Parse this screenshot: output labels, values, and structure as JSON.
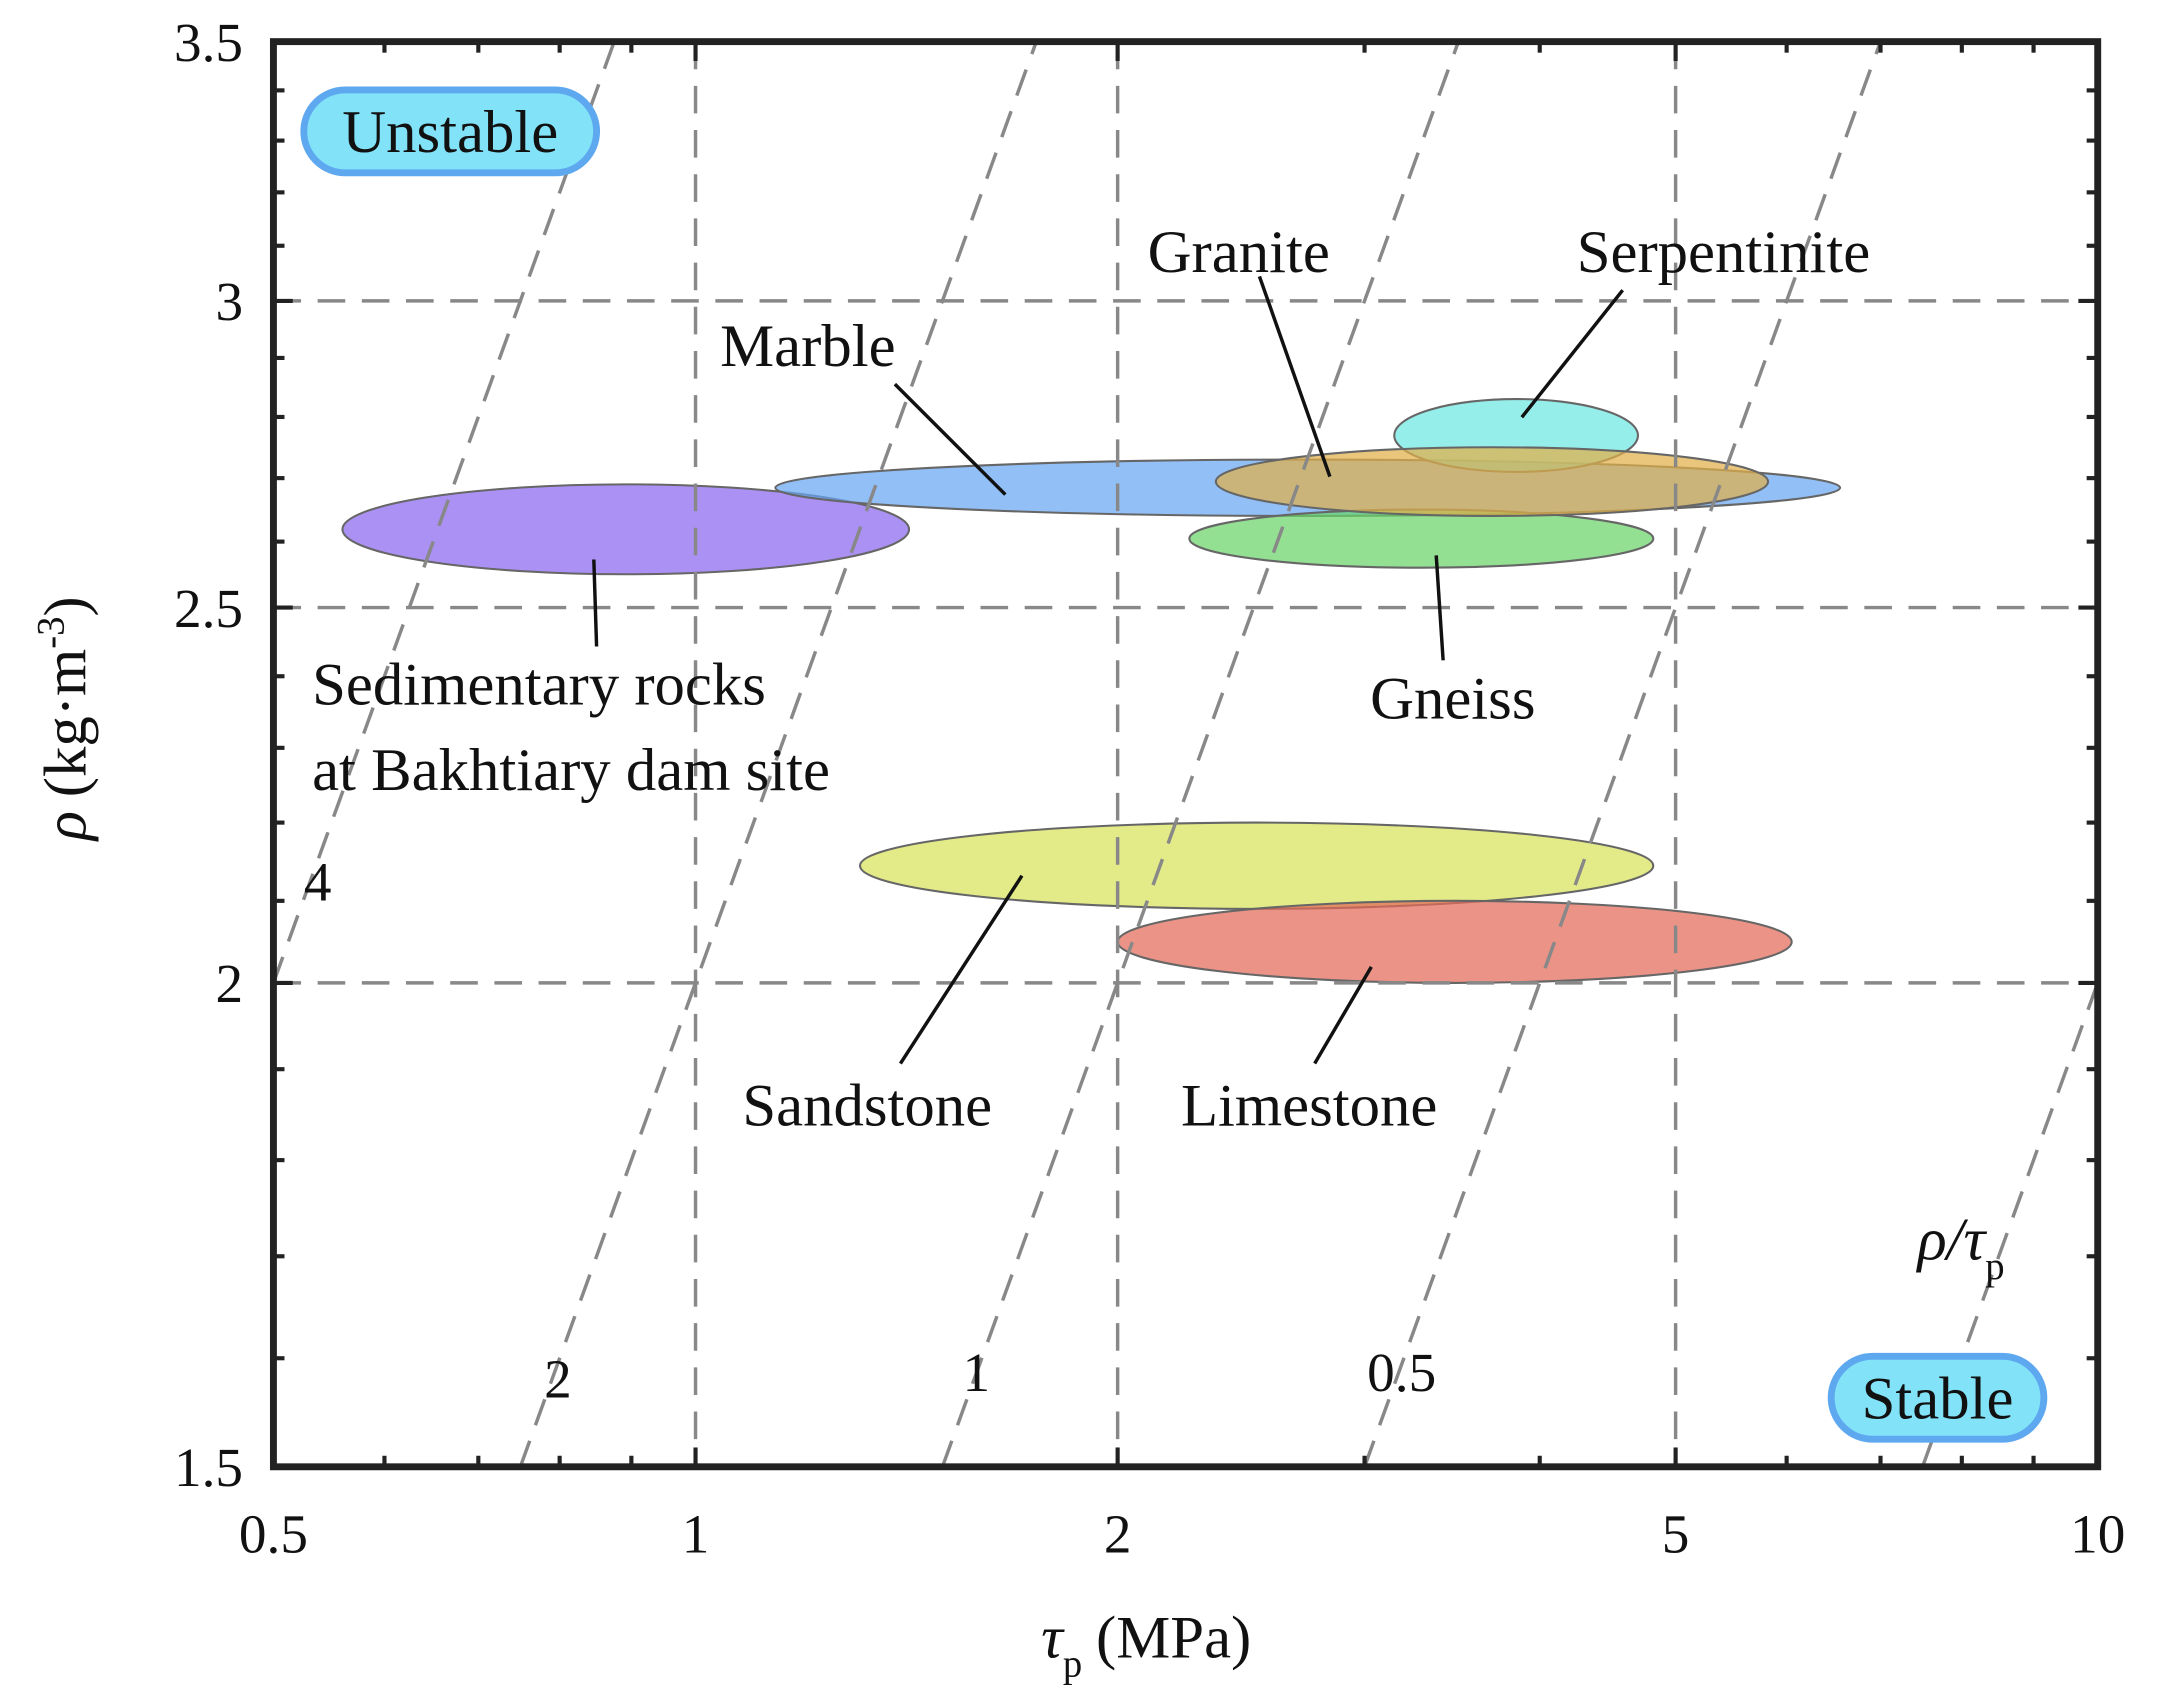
{
  "chart_data": {
    "type": "ellipse",
    "xlabel": {
      "symbol": "τ",
      "sub": "p",
      "text": "(MPa)"
    },
    "ylabel": {
      "symbol": "ρ",
      "text": "(kg·m",
      "sup": "-3",
      "end": ")"
    },
    "xscale": "log",
    "yscale": "log",
    "xlim": [
      0.5,
      10
    ],
    "ylim": [
      1.5,
      3.5
    ],
    "xticks": [
      0.5,
      1,
      2,
      5,
      10
    ],
    "yticks": [
      1.5,
      2,
      2.5,
      3,
      3.5
    ],
    "xminorticks": [
      0.6,
      0.7,
      0.8,
      0.9,
      3,
      4,
      6,
      7,
      8,
      9
    ],
    "yminorticks": [
      1.6,
      1.7,
      1.8,
      1.9,
      2.1,
      2.2,
      2.3,
      2.4,
      2.6,
      2.7,
      2.8,
      2.9,
      3.1,
      3.2,
      3.3,
      3.4
    ],
    "grid": true,
    "ratio_lines": [
      4,
      2,
      1,
      0.5,
      0.2
    ],
    "ratio_label": {
      "symbol": "ρ/τ",
      "sub": "p"
    },
    "zones": [
      "Unstable",
      "Stable"
    ],
    "regions": [
      {
        "name": [
          "Sandstone"
        ],
        "color": "#d8e25a",
        "x": [
          1.31,
          4.82
        ],
        "y": [
          2.09,
          2.2
        ]
      },
      {
        "name": [
          "Limestone"
        ],
        "color": "#e26a58",
        "x": [
          2.0,
          6.05
        ],
        "y": [
          2.0,
          2.1
        ]
      },
      {
        "name": [
          "Sedimentary rocks",
          "at Bakhtiary dam site"
        ],
        "color": "#8a66f0",
        "x": [
          0.56,
          1.42
        ],
        "y": [
          2.55,
          2.69
        ]
      },
      {
        "name": [
          "Marble"
        ],
        "color": "#66a6f2",
        "x": [
          1.14,
          6.55
        ],
        "y": [
          2.64,
          2.73
        ]
      },
      {
        "name": [
          "Gneiss"
        ],
        "color": "#6ad46a",
        "x": [
          2.25,
          4.82
        ],
        "y": [
          2.56,
          2.65
        ]
      },
      {
        "name": [
          "Serpentinite"
        ],
        "color": "#6ee8e2",
        "x": [
          3.15,
          4.7
        ],
        "y": [
          2.71,
          2.83
        ]
      },
      {
        "name": [
          "Granite"
        ],
        "color": "#e0b048",
        "x": [
          2.35,
          5.82
        ],
        "y": [
          2.64,
          2.75
        ]
      }
    ]
  }
}
